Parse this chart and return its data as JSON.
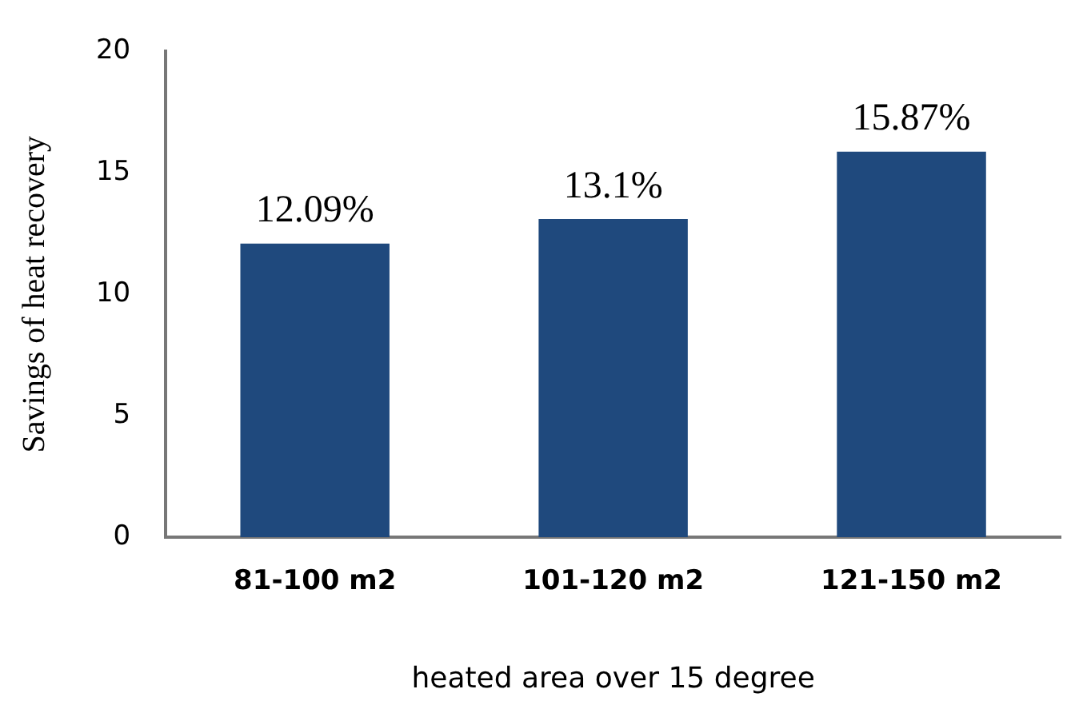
{
  "chart_data": {
    "type": "bar",
    "categories": [
      "81-100 m2",
      "101-120 m2",
      "121-150 m2"
    ],
    "values": [
      12.09,
      13.1,
      15.87
    ],
    "value_labels": [
      "12.09%",
      "13.1%",
      "15.87%"
    ],
    "color": "#1f497d",
    "ylabel": "Savings of heat recovery",
    "xlabel": "heated area over 15 degree",
    "ylim": [
      0,
      20
    ],
    "yticks": [
      0,
      5,
      10,
      15,
      20
    ],
    "grid": false,
    "legend": false
  }
}
